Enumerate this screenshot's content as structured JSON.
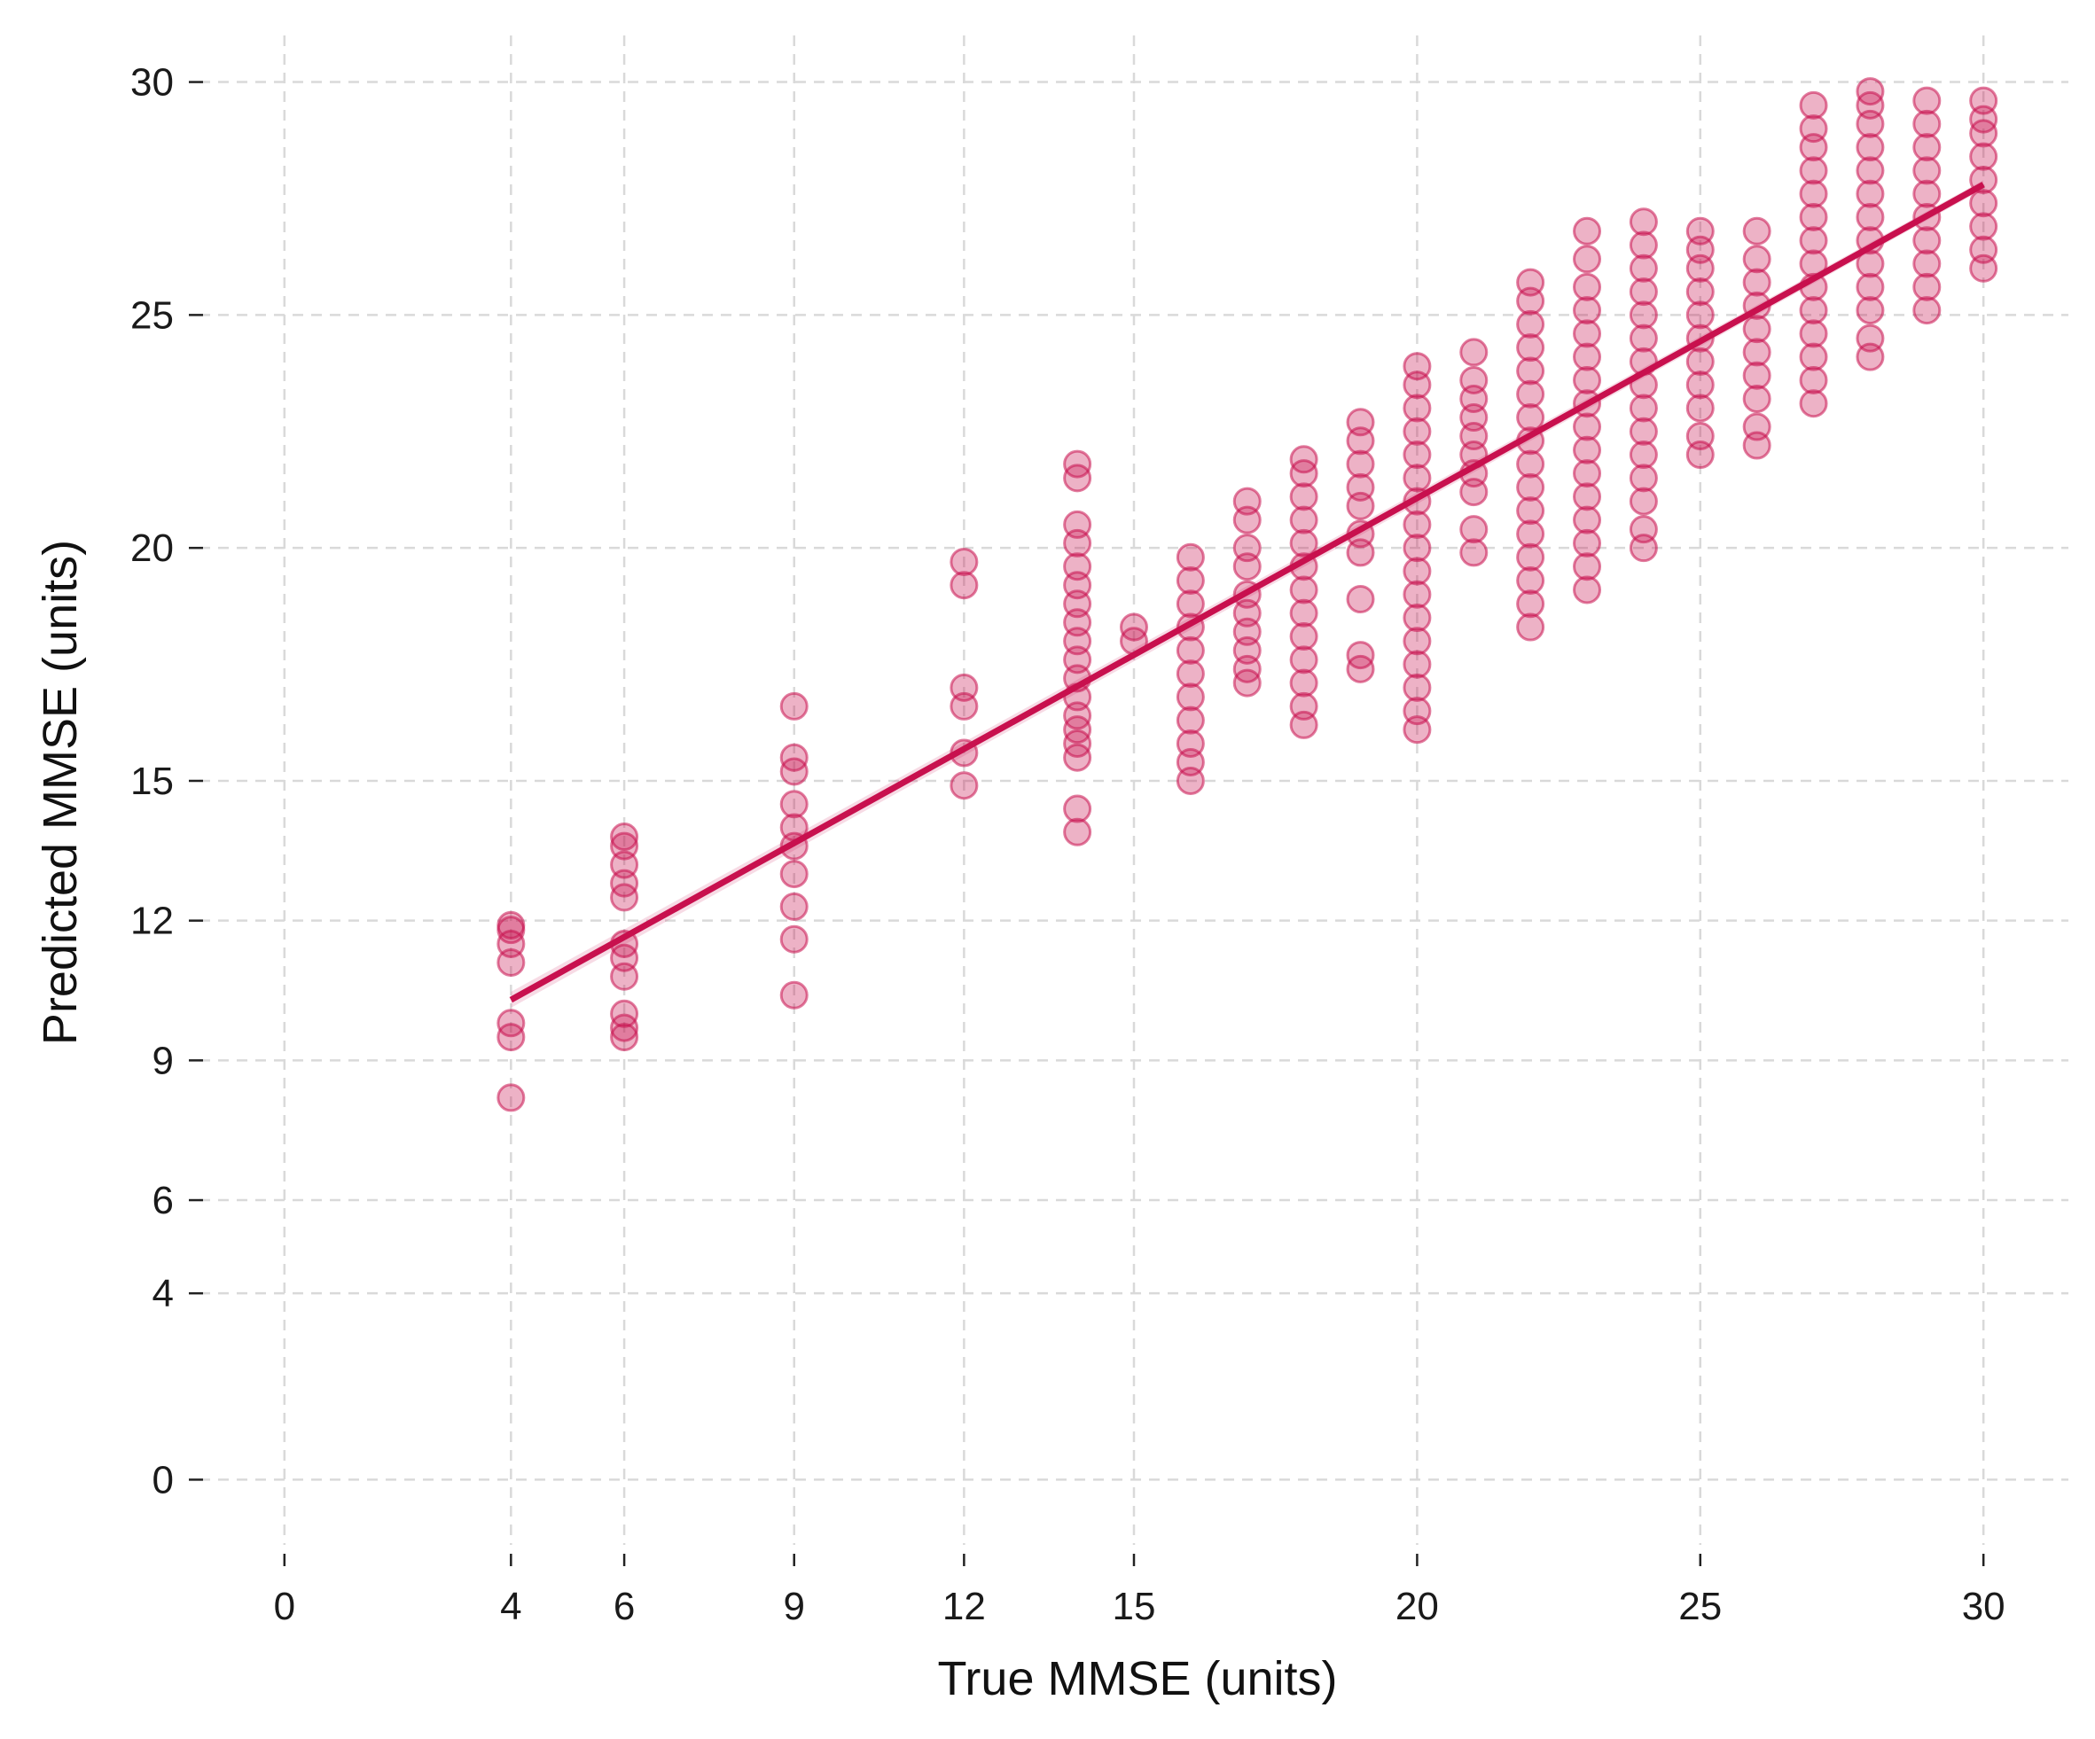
{
  "chart_data": {
    "type": "scatter",
    "xlabel": "True MMSE (units)",
    "ylabel": "Predicted MMSE (units)",
    "xlim": [
      -1.5,
      31.5
    ],
    "ylim": [
      -1.4,
      31.0
    ],
    "x_ticks": [
      0,
      4,
      6,
      9,
      12,
      15,
      20,
      25,
      30
    ],
    "y_ticks": [
      0,
      4,
      6,
      9,
      12,
      15,
      20,
      25,
      30
    ],
    "grid": true,
    "legend": "none",
    "colors": {
      "point": "#c8104e",
      "line": "#c8104e"
    },
    "fit_line": {
      "x": [
        4,
        30
      ],
      "y": [
        10.3,
        27.8
      ]
    },
    "points": [
      {
        "x": 4,
        "y": [
          8.2,
          9.5,
          9.8,
          11.1,
          11.5,
          11.8,
          11.9
        ]
      },
      {
        "x": 6,
        "y": [
          9.5,
          9.7,
          10.0,
          10.8,
          11.2,
          11.5,
          12.5,
          12.8,
          13.2,
          13.6,
          13.8
        ]
      },
      {
        "x": 9,
        "y": [
          10.4,
          11.6,
          12.3,
          13.0,
          13.6,
          14.0,
          14.5,
          15.2,
          15.5,
          16.6
        ]
      },
      {
        "x": 12,
        "y": [
          14.9,
          15.6,
          16.6,
          17.0,
          19.2,
          19.7
        ]
      },
      {
        "x": 14,
        "y": [
          13.9,
          14.4,
          15.5,
          15.8,
          16.1,
          16.4,
          16.8,
          17.2,
          17.6,
          18.0,
          18.4,
          18.8,
          19.2,
          19.6,
          20.1,
          20.5,
          21.5,
          21.8
        ]
      },
      {
        "x": 15,
        "y": [
          18.0,
          18.3
        ]
      },
      {
        "x": 16,
        "y": [
          15.0,
          15.4,
          15.8,
          16.3,
          16.8,
          17.3,
          17.8,
          18.3,
          18.8,
          19.3,
          19.8
        ]
      },
      {
        "x": 17,
        "y": [
          17.1,
          17.4,
          17.8,
          18.2,
          18.6,
          19.0,
          19.6,
          20.0,
          20.6,
          21.0
        ]
      },
      {
        "x": 18,
        "y": [
          16.2,
          16.6,
          17.1,
          17.6,
          18.1,
          18.6,
          19.1,
          19.6,
          20.1,
          20.6,
          21.1,
          21.6,
          21.9
        ]
      },
      {
        "x": 19,
        "y": [
          17.4,
          17.7,
          18.9,
          19.9,
          20.3,
          20.9,
          21.3,
          21.8,
          22.3,
          22.7
        ]
      },
      {
        "x": 20,
        "y": [
          16.1,
          16.5,
          17.0,
          17.5,
          18.0,
          18.5,
          19.0,
          19.5,
          20.0,
          20.5,
          21.0,
          21.5,
          22.0,
          22.5,
          23.0,
          23.5,
          23.9
        ]
      },
      {
        "x": 21,
        "y": [
          19.9,
          20.4,
          21.2,
          21.6,
          22.0,
          22.4,
          22.8,
          23.2,
          23.6,
          24.2
        ]
      },
      {
        "x": 22,
        "y": [
          18.3,
          18.8,
          19.3,
          19.8,
          20.3,
          20.8,
          21.3,
          21.8,
          22.3,
          22.8,
          23.3,
          23.8,
          24.3,
          24.8,
          25.3,
          25.7
        ]
      },
      {
        "x": 23,
        "y": [
          19.1,
          19.6,
          20.1,
          20.6,
          21.1,
          21.6,
          22.1,
          22.6,
          23.1,
          23.6,
          24.1,
          24.6,
          25.1,
          25.6,
          26.2,
          26.8
        ]
      },
      {
        "x": 24,
        "y": [
          20.0,
          20.4,
          21.0,
          21.5,
          22.0,
          22.5,
          23.0,
          23.5,
          24.0,
          24.5,
          25.0,
          25.5,
          26.0,
          26.5,
          27.0
        ]
      },
      {
        "x": 25,
        "y": [
          22.0,
          22.4,
          23.0,
          23.5,
          24.0,
          24.5,
          25.0,
          25.5,
          26.0,
          26.4,
          26.8
        ]
      },
      {
        "x": 26,
        "y": [
          22.2,
          22.6,
          23.2,
          23.7,
          24.2,
          24.7,
          25.2,
          25.7,
          26.2,
          26.8
        ]
      },
      {
        "x": 27,
        "y": [
          23.1,
          23.6,
          24.1,
          24.6,
          25.1,
          25.6,
          26.1,
          26.6,
          27.1,
          27.6,
          28.1,
          28.6,
          29.0,
          29.5
        ]
      },
      {
        "x": 28,
        "y": [
          24.1,
          24.5,
          25.1,
          25.6,
          26.1,
          26.6,
          27.1,
          27.6,
          28.1,
          28.6,
          29.1,
          29.5,
          29.8
        ]
      },
      {
        "x": 29,
        "y": [
          25.1,
          25.6,
          26.1,
          26.6,
          27.1,
          27.6,
          28.1,
          28.6,
          29.1,
          29.6
        ]
      },
      {
        "x": 30,
        "y": [
          26.0,
          26.4,
          26.9,
          27.4,
          27.9,
          28.4,
          28.9,
          29.2,
          29.6
        ]
      }
    ]
  }
}
